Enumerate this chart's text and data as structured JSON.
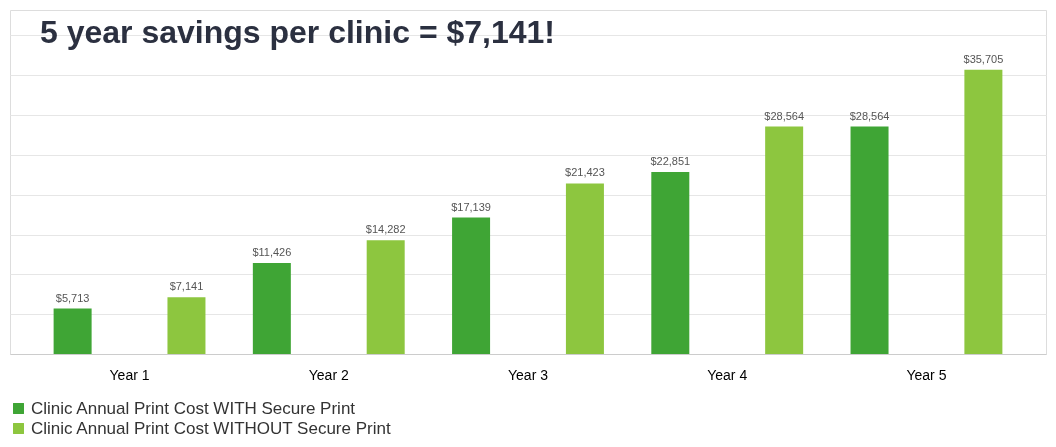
{
  "chart_data": {
    "type": "bar",
    "title": "5 year savings per clinic = $7,141!",
    "categories": [
      "Year 1",
      "Year 2",
      "Year 3",
      "Year 4",
      "Year 5"
    ],
    "series": [
      {
        "name": "Clinic Annual Print Cost WITH Secure Print",
        "color": "#3fa535",
        "values": [
          5713,
          11426,
          17139,
          22851,
          28564
        ],
        "value_labels": [
          "$5,713",
          "$11,426",
          "$17,139",
          "$22,851",
          "$28,564"
        ]
      },
      {
        "name": "Clinic Annual Print Cost WITHOUT Secure Print",
        "color": "#8dc63f",
        "values": [
          7141,
          14282,
          21423,
          28564,
          35705
        ],
        "value_labels": [
          "$7,141",
          "$14,282",
          "$21,423",
          "$28,564",
          "$35,705"
        ]
      }
    ],
    "ylim": [
      0,
      43200
    ],
    "grid": "y",
    "tick_labels": "x",
    "legend": "bottom"
  }
}
